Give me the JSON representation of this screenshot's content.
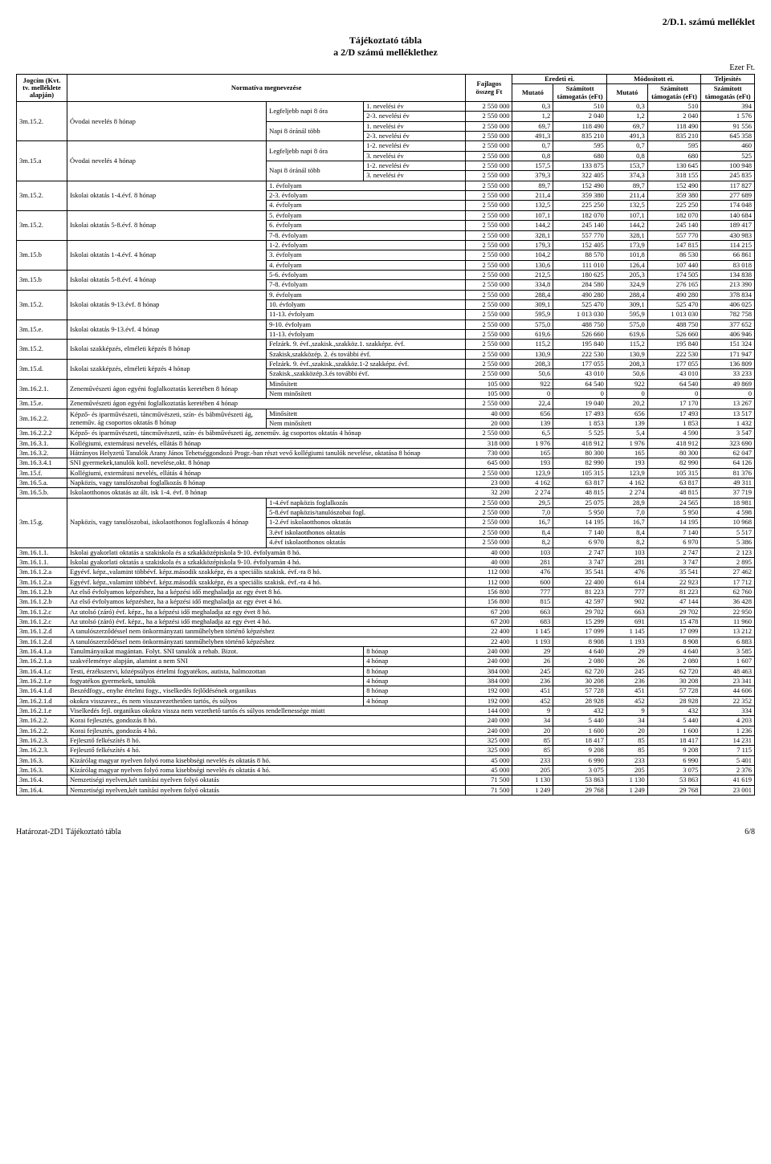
{
  "meta": {
    "top_right": "2/D.1. számú melléklet",
    "title_line1": "Tájékoztató tábla",
    "title_line2": "a 2/D számú melléklethez",
    "unit": "Ezer Ft.",
    "header": {
      "col0": "Jogcím (Kvt. tv. melléklete alapján)",
      "col1": "Normatíva megnevezése",
      "col4": "Fajlagos összeg Ft",
      "eredeti": "Eredeti ei.",
      "modositott": "Módosított ei.",
      "teljesites": "Teljesítés",
      "mutato": "Mutató",
      "szamitott": "Számított támogatás (eFt)"
    },
    "footer_left": "Határozat-2D1 Tájékoztató tábla",
    "footer_page": "6/8"
  },
  "groups": [
    {
      "jogcim": "3m.15.2.",
      "norma": "Óvodai nevelés 8 hónap",
      "subgroups": [
        {
          "label": "Legfeljebb napi 8 óra",
          "rows": [
            {
              "c": "1. nevelési év",
              "f": "2 550 000",
              "m1": "0,3",
              "s1": "510",
              "m2": "0,3",
              "s2": "510",
              "t": "394"
            },
            {
              "c": "2-3. nevelési év",
              "f": "2 550 000",
              "m1": "1,2",
              "s1": "2 040",
              "m2": "1,2",
              "s2": "2 040",
              "t": "1 576"
            }
          ]
        },
        {
          "label": "Napi 8 óránál több",
          "rows": [
            {
              "c": "1. nevelési év",
              "f": "2 550 000",
              "m1": "69,7",
              "s1": "118 490",
              "m2": "69,7",
              "s2": "118 490",
              "t": "91 556"
            },
            {
              "c": "2-3. nevelési év",
              "f": "2 550 000",
              "m1": "491,3",
              "s1": "835 210",
              "m2": "491,3",
              "s2": "835 210",
              "t": "645 358"
            }
          ]
        }
      ]
    },
    {
      "jogcim": "3m.15.a",
      "norma": "Óvodai nevelés 4 hónap",
      "subgroups": [
        {
          "label": "Legfeljebb napi 8 óra",
          "rows": [
            {
              "c": "1-2. nevelési év",
              "f": "2 550 000",
              "m1": "0,7",
              "s1": "595",
              "m2": "0,7",
              "s2": "595",
              "t": "460"
            },
            {
              "c": "3. nevelési év",
              "f": "2 550 000",
              "m1": "0,8",
              "s1": "680",
              "m2": "0,8",
              "s2": "680",
              "t": "525"
            }
          ]
        },
        {
          "label": "Napi 8 óránál több",
          "rows": [
            {
              "c": "1-2. nevelési év",
              "f": "2 550 000",
              "m1": "157,5",
              "s1": "133 875",
              "m2": "153,7",
              "s2": "130 645",
              "t": "100 948"
            },
            {
              "c": "3. nevelési év",
              "f": "2 550 000",
              "m1": "379,3",
              "s1": "322 405",
              "m2": "374,3",
              "s2": "318 155",
              "t": "245 835"
            }
          ]
        }
      ]
    },
    {
      "jogcim": "3m.15.2.",
      "norma": "Iskolai oktatás 1-4.évf. 8 hónap",
      "rows": [
        {
          "c": "1. évfolyam",
          "f": "2 550 000",
          "m1": "89,7",
          "s1": "152 490",
          "m2": "89,7",
          "s2": "152 490",
          "t": "117 827"
        },
        {
          "c": "2-3. évfolyam",
          "f": "2 550 000",
          "m1": "211,4",
          "s1": "359 380",
          "m2": "211,4",
          "s2": "359 380",
          "t": "277 689"
        },
        {
          "c": "4. évfolyam",
          "f": "2 550 000",
          "m1": "132,5",
          "s1": "225 250",
          "m2": "132,5",
          "s2": "225 250",
          "t": "174 048"
        }
      ]
    },
    {
      "jogcim": "3m.15.2.",
      "norma": "Iskolai oktatás 5-8.évf. 8 hónap",
      "rows": [
        {
          "c": "5. évfolyam",
          "f": "2 550 000",
          "m1": "107,1",
          "s1": "182 070",
          "m2": "107,1",
          "s2": "182 070",
          "t": "140 684"
        },
        {
          "c": "6. évfolyam",
          "f": "2 550 000",
          "m1": "144,2",
          "s1": "245 140",
          "m2": "144,2",
          "s2": "245 140",
          "t": "189 417"
        },
        {
          "c": "7-8. évfolyam",
          "f": "2 550 000",
          "m1": "328,1",
          "s1": "557 770",
          "m2": "328,1",
          "s2": "557 770",
          "t": "430 983"
        }
      ]
    },
    {
      "jogcim": "3m.15.b",
      "norma": "Iskolai oktatás 1-4.évf. 4 hónap",
      "rows": [
        {
          "c": "1-2. évfolyam",
          "f": "2 550 000",
          "m1": "179,3",
          "s1": "152 405",
          "m2": "173,9",
          "s2": "147 815",
          "t": "114 215"
        },
        {
          "c": "3. évfolyam",
          "f": "2 550 000",
          "m1": "104,2",
          "s1": "88 570",
          "m2": "101,8",
          "s2": "86 530",
          "t": "66 861"
        },
        {
          "c": "4. évfolyam",
          "f": "2 550 000",
          "m1": "130,6",
          "s1": "111 010",
          "m2": "126,4",
          "s2": "107 440",
          "t": "83 018"
        }
      ]
    },
    {
      "jogcim": "3m.15.b",
      "norma": "Iskolai oktatás 5-8.évf. 4 hónap",
      "rows": [
        {
          "c": "5-6. évfolyam",
          "f": "2 550 000",
          "m1": "212,5",
          "s1": "180 625",
          "m2": "205,3",
          "s2": "174 505",
          "t": "134 838"
        },
        {
          "c": "7-8. évfolyam",
          "f": "2 550 000",
          "m1": "334,8",
          "s1": "284 580",
          "m2": "324,9",
          "s2": "276 165",
          "t": "213 390"
        }
      ]
    },
    {
      "jogcim": "3m.15.2.",
      "norma": "Iskolai oktatás 9-13.évf. 8 hónap",
      "rows": [
        {
          "c": "9. évfolyam",
          "f": "2 550 000",
          "m1": "288,4",
          "s1": "490 280",
          "m2": "288,4",
          "s2": "490 280",
          "t": "378 834"
        },
        {
          "c": "10. évfolyam",
          "f": "2 550 000",
          "m1": "309,1",
          "s1": "525 470",
          "m2": "309,1",
          "s2": "525 470",
          "t": "406 025"
        },
        {
          "c": "11-13. évfolyam",
          "f": "2 550 000",
          "m1": "595,9",
          "s1": "1 013 030",
          "m2": "595,9",
          "s2": "1 013 030",
          "t": "782 758"
        }
      ]
    },
    {
      "jogcim": "3m.15.e.",
      "norma": "Iskolai oktatás 9-13.évf. 4 hónap",
      "rows": [
        {
          "c": "9-10. évfolyam",
          "f": "2 550 000",
          "m1": "575,0",
          "s1": "488 750",
          "m2": "575,0",
          "s2": "488 750",
          "t": "377 652"
        },
        {
          "c": "11-13. évfolyam",
          "f": "2 550 000",
          "m1": "619,6",
          "s1": "526 660",
          "m2": "619,6",
          "s2": "526 660",
          "t": "406 946"
        }
      ]
    },
    {
      "jogcim": "3m.15.2.",
      "norma": "Iskolai szakképzés, elméleti képzés 8 hónap",
      "rows": [
        {
          "c": "Felzárk. 9. évf.,szakisk.,szakköz.1. szakképz. évf.",
          "f": "2 550 000",
          "m1": "115,2",
          "s1": "195 840",
          "m2": "115,2",
          "s2": "195 840",
          "t": "151 324"
        },
        {
          "c": "Szakisk,szakközép. 2. és további évf.",
          "f": "2 550 000",
          "m1": "130,9",
          "s1": "222 530",
          "m2": "130,9",
          "s2": "222 530",
          "t": "171 947"
        }
      ]
    },
    {
      "jogcim": "3m.15.d.",
      "norma": "Iskolai szakképzés, elméleti képzés 4 hónap",
      "rows": [
        {
          "c": "Felzárk. 9. évf.,szakisk.,szakköz.1-2 szakképz. évf.",
          "f": "2 550 000",
          "m1": "208,3",
          "s1": "177 055",
          "m2": "208,3",
          "s2": "177 055",
          "t": "136 809"
        },
        {
          "c": "Szakisk.,szakközép.3.és további évf.",
          "f": "2 550 000",
          "m1": "50,6",
          "s1": "43 010",
          "m2": "50,6",
          "s2": "43 010",
          "t": "33 233"
        }
      ]
    },
    {
      "jogcim": "3m.16.2.1.",
      "norma": "Zeneművészeti ágon egyéni foglalkoztatás keretében 8 hónap",
      "rows": [
        {
          "c": "Minősített",
          "f": "105 000",
          "m1": "922",
          "s1": "64 540",
          "m2": "922",
          "s2": "64 540",
          "t": "49 869"
        },
        {
          "c": "Nem minősített",
          "f": "105 000",
          "m1": "0",
          "s1": "0",
          "m2": "0",
          "s2": "0",
          "t": "0"
        }
      ]
    }
  ],
  "flatrows": [
    {
      "j": "3m.15.e.",
      "n": "Zeneművészeti ágon egyéni foglalkoztatás keretében 4 hónap",
      "f": "2 550 000",
      "m1": "22,4",
      "s1": "19 040",
      "m2": "20,2",
      "s2": "17 170",
      "t": "13 267"
    }
  ],
  "group2": {
    "jogcim": "3m.16.2.2.",
    "norma": "Képző- és iparművészeti, táncművészeti, szín- és bábművészeti ág, zeneműv. ág csoportos oktatás 8 hónap",
    "rows": [
      {
        "c": "Minősített",
        "f": "40 000",
        "m1": "656",
        "s1": "17 493",
        "m2": "656",
        "s2": "17 493",
        "t": "13 517"
      },
      {
        "c": "Nem minősített",
        "f": "20 000",
        "m1": "139",
        "s1": "1 853",
        "m2": "139",
        "s2": "1 853",
        "t": "1 432"
      }
    ]
  },
  "flatrows2": [
    {
      "j": "3m.16.2.2.2",
      "n": "Képző- és iparművészeti, táncművészeti, szín- és bábművészeti ág, zeneműv. ág csoportos oktatás 4 hónap",
      "f": "2 550 000",
      "m1": "6,5",
      "s1": "5 525",
      "m2": "5,4",
      "s2": "4 590",
      "t": "3 547"
    },
    {
      "j": "3m.16.3.1.",
      "n": "Kollégiumi, externátusi nevelés, ellátás 8 hónap",
      "f": "318 000",
      "m1": "1 976",
      "s1": "418 912",
      "m2": "1 976",
      "s2": "418 912",
      "t": "323 690"
    },
    {
      "j": "3m.16.3.2.",
      "n": "Hátrányos Helyzetű Tanulók Arany János Tehetséggondozó Progr.-ban részt vevő kollégiumi tanulók nevelése, oktatása 8 hónap",
      "f": "730 000",
      "m1": "165",
      "s1": "80 300",
      "m2": "165",
      "s2": "80 300",
      "t": "62 047"
    },
    {
      "j": "3m.16.3.4.1",
      "n": "SNI gyermekek,tanulók koll. nevelése,okt. 8 hónap",
      "f": "645 000",
      "m1": "193",
      "s1": "82 990",
      "m2": "193",
      "s2": "82 990",
      "t": "64 126"
    },
    {
      "j": "3m.15.f.",
      "n": "Kollégiumi, externátusi nevelés, ellátás 4 hónap",
      "f": "2 550 000",
      "m1": "123,9",
      "s1": "105 315",
      "m2": "123,9",
      "s2": "105 315",
      "t": "81 376"
    },
    {
      "j": "3m.16.5.a.",
      "n": "Napközis, vagy tanulószobai foglalkozás 8 hónap",
      "f": "23 000",
      "m1": "4 162",
      "s1": "63 817",
      "m2": "4 162",
      "s2": "63 817",
      "t": "49 311"
    },
    {
      "j": "3m.16.5.b.",
      "n": "Iskolaotthonos oktatás az ált. isk 1-4. évf. 8 hónap",
      "f": "32 200",
      "m1": "2 274",
      "s1": "48 815",
      "m2": "2 274",
      "s2": "48 815",
      "t": "37 719"
    }
  ],
  "group3": {
    "jogcim": "3m.15.g.",
    "norma": "Napközis, vagy tanulószobai, iskolaotthonos foglalkozás 4 hónap",
    "rows": [
      {
        "c": "1-4.évf napközis foglalkozás",
        "f": "2 550 000",
        "m1": "29,5",
        "s1": "25 075",
        "m2": "28,9",
        "s2": "24 565",
        "t": "18 981"
      },
      {
        "c": "5-8.évf napközis/tanulószobai fogl.",
        "f": "2 550 000",
        "m1": "7,0",
        "s1": "5 950",
        "m2": "7,0",
        "s2": "5 950",
        "t": "4 598"
      },
      {
        "c": "1-2.évf iskolaotthonos oktatás",
        "f": "2 550 000",
        "m1": "16,7",
        "s1": "14 195",
        "m2": "16,7",
        "s2": "14 195",
        "t": "10 968"
      },
      {
        "c": "3.évf iskolaotthonos oktatás",
        "f": "2 550 000",
        "m1": "8,4",
        "s1": "7 140",
        "m2": "8,4",
        "s2": "7 140",
        "t": "5 517"
      },
      {
        "c": "4.évf iskolaotthonos oktatás",
        "f": "2 550 000",
        "m1": "8,2",
        "s1": "6 970",
        "m2": "8,2",
        "s2": "6 970",
        "t": "5 386"
      }
    ]
  },
  "flatrows3": [
    {
      "j": "3m.16.1.1.",
      "n": "Iskolai gyakorlati oktatás a szakiskola és a szkakközépiskola 9-10. évfolyamán 8 hó.",
      "f": "40 000",
      "m1": "103",
      "s1": "2 747",
      "m2": "103",
      "s2": "2 747",
      "t": "2 123"
    },
    {
      "j": "3m.16.1.1.",
      "n": "Iskolai gyakorlati oktatás a szakiskola és a szkakközépiskola 9-10. évfolyamán 4 hó.",
      "f": "40 000",
      "m1": "281",
      "s1": "3 747",
      "m2": "281",
      "s2": "3 747",
      "t": "2 895"
    },
    {
      "j": "3m.16.1.2.a",
      "n": "Egyévf. képz.,valamint többévf. képz.második szakképz, és a speciális szakisk. évf.-ra 8 hó.",
      "f": "112 000",
      "m1": "476",
      "s1": "35 541",
      "m2": "476",
      "s2": "35 541",
      "t": "27 462"
    },
    {
      "j": "3m.16.1.2.a",
      "n": "Egyévf. képz.,valamint többévf. képz.második szakképz, és a speciális szakisk. évf.-ra 4 hó.",
      "f": "112 000",
      "m1": "600",
      "s1": "22 400",
      "m2": "614",
      "s2": "22 923",
      "t": "17 712"
    },
    {
      "j": "3m.16.1.2.b",
      "n": "Az első évfolyamos képzéshez, ha a képzési idő meghaladja az egy évet 8 hó.",
      "f": "156 800",
      "m1": "777",
      "s1": "81 223",
      "m2": "777",
      "s2": "81 223",
      "t": "62 760"
    },
    {
      "j": "3m.16.1.2.b",
      "n": "Az első évfolyamos képzéshez, ha a képzési idő meghaladja az egy évet 4 hó.",
      "f": "156 800",
      "m1": "815",
      "s1": "42 597",
      "m2": "902",
      "s2": "47 144",
      "t": "36 428"
    },
    {
      "j": "3m.16.1.2.c",
      "n": "Az utolsó (záró) évf. képz., ha a képzési idő meghaladja az egy évet 8 hó.",
      "f": "67 200",
      "m1": "663",
      "s1": "29 702",
      "m2": "663",
      "s2": "29 702",
      "t": "22 950"
    },
    {
      "j": "3m.16.1.2.c",
      "n": "Az utolsó (záró) évf. képz., ha a képzési idő meghaladja az egy évet 4 hó.",
      "f": "67 200",
      "m1": "683",
      "s1": "15 299",
      "m2": "691",
      "s2": "15 478",
      "t": "11 960"
    },
    {
      "j": "3m.16.1.2.d",
      "n": "A tanulószerződéssel nem önkormányzati tanműhelyben történő képzéshez",
      "f": "22 400",
      "m1": "1 145",
      "s1": "17 099",
      "m2": "1 145",
      "s2": "17 099",
      "t": "13 212"
    },
    {
      "j": "3m.16.1.2.d",
      "n": "A tanulószerződéssel nem önkormányzati tanműhelyben történő képzéshez",
      "f": "22 400",
      "m1": "1 193",
      "s1": "8 908",
      "m2": "1 193",
      "s2": "8 908",
      "t": "6 883"
    }
  ],
  "splitrows": [
    {
      "j": "3m.16.4.1.a",
      "n": "Tanulmányaikat magántan. Folyt. SNI tanulók a rehab. Bizot.",
      "c": "8 hónap",
      "f": "240 000",
      "m1": "29",
      "s1": "4 640",
      "m2": "29",
      "s2": "4 640",
      "t": "3 585"
    },
    {
      "j": "3m.16.2.1.a",
      "n": "szakvéleménye alapján, alamint a nem SNI",
      "c": "4 hónap",
      "f": "240 000",
      "m1": "26",
      "s1": "2 080",
      "m2": "26",
      "s2": "2 080",
      "t": "1 607"
    },
    {
      "j": "3m.16.4.1.c",
      "n": "Testi, érzékszervi, középsúlyos értelmi fogyatékos, autista, halmozottan",
      "c": "8 hónap",
      "f": "384 000",
      "m1": "245",
      "s1": "62 720",
      "m2": "245",
      "s2": "62 720",
      "t": "48 463"
    },
    {
      "j": "3m.16.2.1.e",
      "n": "fogyatékos gyermekek, tanulók",
      "c": "4 hónap",
      "f": "384 000",
      "m1": "236",
      "s1": "30 208",
      "m2": "236",
      "s2": "30 208",
      "t": "23 341"
    },
    {
      "j": "3m.16.4.1.d",
      "n": "Beszédfogy., enyhe értelmi fogy., viselkedés fejlődésének organikus",
      "c": "8 hónap",
      "f": "192 000",
      "m1": "451",
      "s1": "57 728",
      "m2": "451",
      "s2": "57 728",
      "t": "44 606"
    },
    {
      "j": "3m.16.2.1.d",
      "n": "okokra visszavez., és nem visszavezethetően tartós, és súlyos",
      "c": "4 hónap",
      "f": "192 000",
      "m1": "452",
      "s1": "28 928",
      "m2": "452",
      "s2": "28 928",
      "t": "22 352"
    }
  ],
  "flatrows4": [
    {
      "j": "3m.16.2.1.e",
      "n": "Viselkedés fejl. organikus okokra vissza nem vezethető tartós és súlyos rendellenessége miatt",
      "f": "144 000",
      "m1": "9",
      "s1": "432",
      "m2": "9",
      "s2": "432",
      "t": "334"
    },
    {
      "j": "3m.16.2.2.",
      "n": "Korai fejlesztés, gondozás 8 hó.",
      "f": "240 000",
      "m1": "34",
      "s1": "5 440",
      "m2": "34",
      "s2": "5 440",
      "t": "4 203"
    },
    {
      "j": "3m.16.2.2.",
      "n": "Korai fejlesztés, gondozás 4 hó.",
      "f": "240 000",
      "m1": "20",
      "s1": "1 600",
      "m2": "20",
      "s2": "1 600",
      "t": "1 236"
    },
    {
      "j": "3m.16.2.3.",
      "n": "Fejlesztő felkészítés 8 hó.",
      "f": "325 000",
      "m1": "85",
      "s1": "18 417",
      "m2": "85",
      "s2": "18 417",
      "t": "14 231"
    },
    {
      "j": "3m.16.2.3.",
      "n": "Fejlesztő felkészítés 4 hó.",
      "f": "325 000",
      "m1": "85",
      "s1": "9 208",
      "m2": "85",
      "s2": "9 208",
      "t": "7 115"
    },
    {
      "j": "3m.16.3.",
      "n": "Kizárólag magyar nyelven folyó roma kisebbségi  nevelés és oktatás 8 hó.",
      "f": "45 000",
      "m1": "233",
      "s1": "6 990",
      "m2": "233",
      "s2": "6 990",
      "t": "5 401"
    },
    {
      "j": "3m.16.3.",
      "n": "Kizárólag magyar nyelven folyó roma kisebbségi  nevelés és oktatás 4 hó.",
      "f": "45 000",
      "m1": "205",
      "s1": "3 075",
      "m2": "205",
      "s2": "3 075",
      "t": "2 376"
    },
    {
      "j": "3m.16.4.",
      "n": "Nemzetiségi nyelven,két tanítási nyelven folyó oktatás",
      "f": "71 500",
      "m1": "1 130",
      "s1": "53 863",
      "m2": "1 130",
      "s2": "53 863",
      "t": "41 619"
    },
    {
      "j": "3m.16.4.",
      "n": "Nemzetiségi nyelven,két tanítási nyelven folyó oktatás",
      "f": "71 500",
      "m1": "1 249",
      "s1": "29 768",
      "m2": "1 249",
      "s2": "29 768",
      "t": "23 001"
    }
  ]
}
